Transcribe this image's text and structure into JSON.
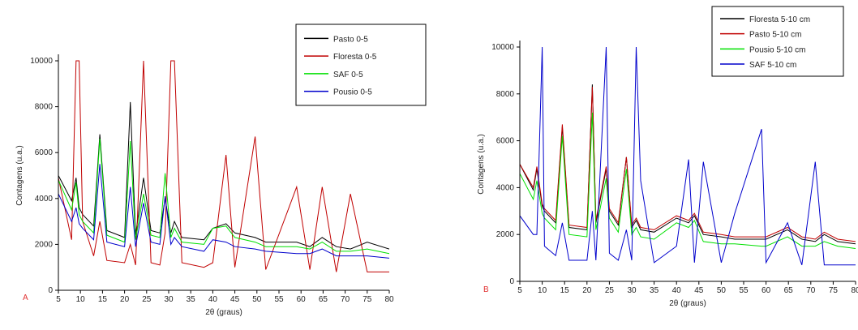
{
  "chart_data": [
    {
      "type": "line",
      "annotation": "A",
      "x_label": "2θ (graus)",
      "y_label": "Contagens (u.a.)",
      "x": [
        5,
        8,
        9,
        9.7,
        10.5,
        13,
        14.4,
        16,
        20,
        21.3,
        22.5,
        24.3,
        26,
        28,
        29.2,
        30.5,
        31.3,
        33,
        38,
        40,
        43,
        45,
        49.6,
        52,
        59,
        62,
        64.8,
        68,
        71.2,
        75,
        80
      ],
      "xlim": [
        5,
        80
      ],
      "xticks": [
        5,
        10,
        15,
        20,
        25,
        30,
        35,
        40,
        45,
        50,
        55,
        60,
        65,
        70,
        75,
        80
      ],
      "ylim": [
        0,
        10000
      ],
      "yticks": [
        0,
        2000,
        4000,
        6000,
        8000,
        10000
      ],
      "series": [
        {
          "name": "Pasto 0-5",
          "color": "#000000",
          "values": [
            5000,
            3900,
            4900,
            3600,
            3300,
            2800,
            6800,
            2600,
            2300,
            8200,
            2400,
            4900,
            2600,
            2500,
            4000,
            2500,
            3000,
            2300,
            2200,
            2700,
            2900,
            2500,
            2300,
            2100,
            2100,
            1900,
            2300,
            1900,
            1800,
            2100,
            1800
          ]
        },
        {
          "name": "Floresta 0-5",
          "color": "#c00000",
          "values": [
            4900,
            2200,
            10000,
            10000,
            3000,
            1500,
            3000,
            1300,
            1200,
            2000,
            1100,
            10000,
            1200,
            1100,
            2500,
            10000,
            10000,
            1200,
            1000,
            1200,
            5900,
            1000,
            6700,
            900,
            4500,
            900,
            4500,
            800,
            4200,
            800,
            800
          ]
        },
        {
          "name": "SAF 0-5",
          "color": "#00e000",
          "values": [
            4800,
            3500,
            4700,
            3300,
            3000,
            2500,
            6600,
            2400,
            2100,
            6500,
            2200,
            4200,
            2400,
            2300,
            5100,
            2300,
            2700,
            2100,
            2000,
            2700,
            2800,
            2300,
            2100,
            1900,
            1900,
            1800,
            2100,
            1700,
            1700,
            1800,
            1600
          ]
        },
        {
          "name": "Pousio 0-5",
          "color": "#0000cc",
          "values": [
            4200,
            3000,
            3600,
            2900,
            2700,
            2200,
            5500,
            2100,
            1900,
            4500,
            1900,
            3800,
            2100,
            2000,
            4100,
            2000,
            2300,
            1900,
            1700,
            2200,
            2100,
            1900,
            1800,
            1700,
            1600,
            1600,
            1800,
            1500,
            1500,
            1500,
            1400
          ]
        }
      ]
    },
    {
      "type": "line",
      "annotation": "B",
      "x_label": "2θ (graus)",
      "y_label": "Contagens (u.a.)",
      "x": [
        5,
        8,
        8.8,
        10,
        10.5,
        13,
        14.5,
        16,
        20,
        21.2,
        22,
        24.3,
        25,
        27,
        28.8,
        30,
        31,
        32,
        35,
        40,
        42.7,
        44,
        46,
        50,
        53,
        59,
        60,
        64.8,
        68,
        71,
        73,
        76,
        80
      ],
      "xlim": [
        5,
        80
      ],
      "xticks": [
        5,
        10,
        15,
        20,
        25,
        30,
        35,
        40,
        45,
        50,
        55,
        60,
        65,
        70,
        75,
        80
      ],
      "ylim": [
        0,
        10000
      ],
      "yticks": [
        0,
        2000,
        4000,
        6000,
        8000,
        10000
      ],
      "series": [
        {
          "name": "Floresta 5-10 cm",
          "color": "#000000",
          "values": [
            5000,
            3900,
            4800,
            3200,
            3000,
            2500,
            6600,
            2300,
            2200,
            8400,
            2500,
            4800,
            3000,
            2400,
            5300,
            2300,
            2600,
            2200,
            2100,
            2700,
            2500,
            2800,
            2000,
            1900,
            1800,
            1800,
            1800,
            2200,
            1800,
            1700,
            2000,
            1700,
            1600
          ]
        },
        {
          "name": "Pasto 5-10 cm",
          "color": "#c00000",
          "values": [
            5000,
            4000,
            4900,
            3300,
            3100,
            2600,
            6700,
            2400,
            2300,
            8300,
            2600,
            4900,
            3100,
            2500,
            5300,
            2400,
            2700,
            2300,
            2200,
            2800,
            2600,
            2900,
            2100,
            2000,
            1900,
            1900,
            1900,
            2300,
            1900,
            1800,
            2100,
            1800,
            1700
          ]
        },
        {
          "name": "Pousio 5-10 cm",
          "color": "#00e000",
          "values": [
            4600,
            3500,
            4300,
            2900,
            2700,
            2200,
            6200,
            2000,
            1900,
            7200,
            2200,
            4400,
            2700,
            2100,
            4800,
            2000,
            2300,
            1900,
            1800,
            2500,
            2300,
            2600,
            1700,
            1600,
            1600,
            1500,
            1500,
            1900,
            1500,
            1500,
            1700,
            1500,
            1400
          ]
        },
        {
          "name": "SAF 5-10 cm",
          "color": "#0000cc",
          "values": [
            2800,
            2000,
            2000,
            10000,
            1500,
            1100,
            2500,
            900,
            900,
            3000,
            900,
            10000,
            1200,
            900,
            2200,
            900,
            10000,
            4300,
            800,
            1500,
            5200,
            800,
            5100,
            800,
            2900,
            6500,
            800,
            2500,
            700,
            5100,
            700,
            700,
            700
          ]
        }
      ]
    }
  ]
}
